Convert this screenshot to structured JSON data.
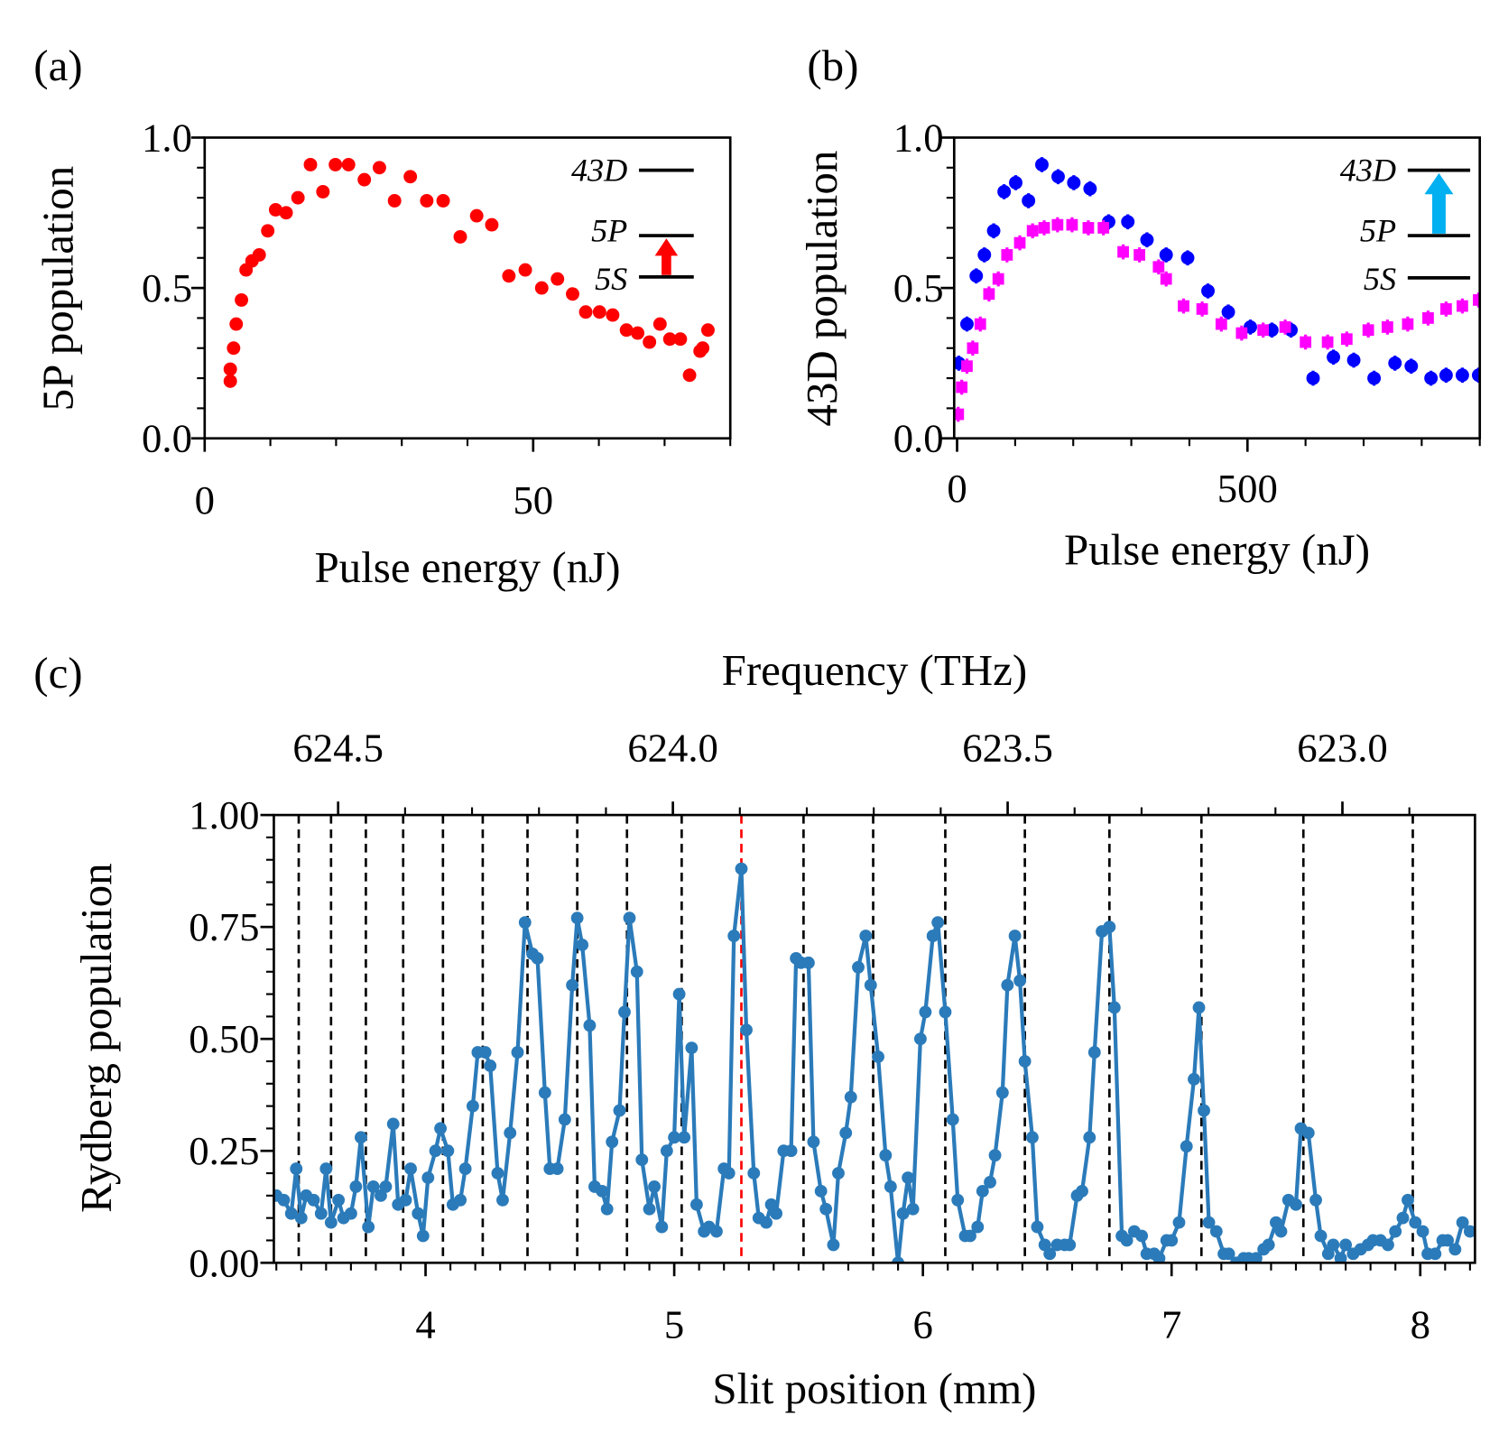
{
  "chart_data": [
    {
      "type": "scatter",
      "panel": "(a)",
      "xlabel": "Pulse energy (nJ)",
      "ylabel": "5P population",
      "xlim": [
        0,
        80
      ],
      "ylim": [
        0,
        1
      ],
      "xticks": [
        0,
        50
      ],
      "yticks": [
        {
          "value": 0,
          "label": "0.0"
        },
        0.5,
        {
          "value": 1,
          "label": "1.0"
        }
      ],
      "xminor": 10,
      "yminor": 0.1,
      "levels": [
        "43D",
        "5P",
        "5S"
      ],
      "arrow_from": 2,
      "arrow_to": 1,
      "arrow_color": "#ff0000",
      "series": [
        {
          "color": "#ff0000",
          "marker": "o",
          "x": [
            3.9,
            3.9,
            4.4,
            4.8,
            5.6,
            6.3,
            7.2,
            8.3,
            9.6,
            10.8,
            12.4,
            14.2,
            16.1,
            18.0,
            19.9,
            21.9,
            24.3,
            26.6,
            28.9,
            31.3,
            33.8,
            36.3,
            38.9,
            41.4,
            43.7,
            46.3,
            48.8,
            51.3,
            53.7,
            56.0,
            58.0,
            60.1,
            62.1,
            64.2,
            65.9,
            67.7,
            69.3,
            70.8,
            72.4,
            73.8,
            75.4,
            75.8,
            76.6
          ],
          "values": [
            0.19,
            0.23,
            0.3,
            0.38,
            0.46,
            0.56,
            0.59,
            0.61,
            0.69,
            0.76,
            0.75,
            0.8,
            0.91,
            0.82,
            0.91,
            0.91,
            0.86,
            0.9,
            0.79,
            0.87,
            0.79,
            0.79,
            0.67,
            0.74,
            0.71,
            0.54,
            0.56,
            0.5,
            0.53,
            0.48,
            0.42,
            0.42,
            0.41,
            0.36,
            0.35,
            0.32,
            0.38,
            0.33,
            0.33,
            0.21,
            0.29,
            0.3,
            0.36
          ]
        }
      ]
    },
    {
      "type": "scatter",
      "panel": "(b)",
      "xlabel": "Pulse energy (nJ)",
      "ylabel": "43D population",
      "xlim": [
        -5,
        900
      ],
      "ylim": [
        0,
        1
      ],
      "xticks": [
        0,
        500
      ],
      "yticks": [
        {
          "value": 0,
          "label": "0.0"
        },
        0.5,
        {
          "value": 1,
          "label": "1.0"
        }
      ],
      "xminor": 100,
      "yminor": 0.1,
      "levels": [
        "43D",
        "5P",
        "5S"
      ],
      "arrow_from": 1,
      "arrow_to": 0,
      "arrow_color": "#00b0f0",
      "series": [
        {
          "color": "#0000ff",
          "marker": "o",
          "error": 0.025,
          "x": [
            3,
            17,
            33,
            47,
            63,
            81,
            101,
            123,
            146,
            174,
            201,
            229,
            261,
            294,
            327,
            360,
            397,
            432,
            467,
            505,
            542,
            575,
            613,
            648,
            683,
            718,
            754,
            782,
            816,
            842,
            870,
            898
          ],
          "values": [
            0.25,
            0.38,
            0.54,
            0.61,
            0.69,
            0.82,
            0.85,
            0.79,
            0.91,
            0.87,
            0.85,
            0.83,
            0.72,
            0.72,
            0.66,
            0.61,
            0.6,
            0.49,
            0.42,
            0.37,
            0.36,
            0.36,
            0.2,
            0.27,
            0.26,
            0.2,
            0.25,
            0.24,
            0.2,
            0.21,
            0.21,
            0.21
          ]
        },
        {
          "color": "#ff00ff",
          "marker": "s",
          "error": 0.025,
          "x": [
            2,
            8,
            17,
            27,
            40,
            55,
            71,
            86,
            108,
            130,
            150,
            173,
            198,
            226,
            252,
            286,
            314,
            347,
            360,
            390,
            422,
            455,
            490,
            527,
            565,
            600,
            638,
            671,
            708,
            741,
            776,
            811,
            842,
            870,
            898
          ],
          "values": [
            0.08,
            0.17,
            0.24,
            0.3,
            0.38,
            0.48,
            0.53,
            0.61,
            0.65,
            0.69,
            0.7,
            0.71,
            0.71,
            0.7,
            0.7,
            0.62,
            0.61,
            0.57,
            0.53,
            0.44,
            0.43,
            0.38,
            0.35,
            0.36,
            0.37,
            0.32,
            0.32,
            0.33,
            0.36,
            0.37,
            0.38,
            0.4,
            0.43,
            0.44,
            0.46
          ]
        }
      ]
    },
    {
      "type": "line",
      "panel": "(c)",
      "xlabel": "Slit position (mm)",
      "ylabel": "Rydberg population",
      "x2label": "Frequency (THz)",
      "xlim": [
        3.39,
        8.22
      ],
      "ylim": [
        0,
        1
      ],
      "xticks": [
        4,
        5,
        6,
        7,
        8
      ],
      "xminor": 0.1,
      "yticks": [
        {
          "value": 0,
          "label": "0.00"
        },
        0.25,
        {
          "value": 0.5,
          "label": "0.50"
        },
        0.75,
        {
          "value": 1,
          "label": "1.00"
        }
      ],
      "yminor": 0.05,
      "x2lim": [
        624.596,
        622.802
      ],
      "x2ticks": [
        624.5,
        {
          "value": 624.0,
          "label": "624.0"
        },
        623.5,
        {
          "value": 623.0,
          "label": "623.0"
        }
      ],
      "x2minor": 0.1,
      "vlines": [
        3.49,
        3.62,
        3.76,
        3.91,
        4.07,
        4.23,
        4.41,
        4.61,
        4.81,
        5.03,
        5.27,
        5.52,
        5.8,
        6.09,
        6.41,
        6.75,
        7.12,
        7.53,
        7.97
      ],
      "vline_colors": [
        "#000000",
        "#000000",
        "#000000",
        "#000000",
        "#000000",
        "#000000",
        "#000000",
        "#000000",
        "#000000",
        "#000000",
        "#ff0000",
        "#000000",
        "#000000",
        "#000000",
        "#000000",
        "#000000",
        "#000000",
        "#000000",
        "#000000"
      ],
      "color": "#2b7bba",
      "x": [
        3.4,
        3.43,
        3.46,
        3.48,
        3.5,
        3.52,
        3.55,
        3.58,
        3.6,
        3.62,
        3.65,
        3.67,
        3.7,
        3.72,
        3.74,
        3.77,
        3.79,
        3.82,
        3.84,
        3.87,
        3.89,
        3.92,
        3.94,
        3.97,
        3.99,
        4.01,
        4.04,
        4.06,
        4.09,
        4.11,
        4.14,
        4.16,
        4.19,
        4.21,
        4.24,
        4.26,
        4.29,
        4.31,
        4.34,
        4.37,
        4.4,
        4.43,
        4.45,
        4.48,
        4.5,
        4.53,
        4.56,
        4.59,
        4.61,
        4.63,
        4.66,
        4.68,
        4.71,
        4.73,
        4.75,
        4.78,
        4.8,
        4.82,
        4.85,
        4.87,
        4.9,
        4.92,
        4.95,
        4.97,
        5.0,
        5.02,
        5.04,
        5.07,
        5.09,
        5.12,
        5.14,
        5.17,
        5.2,
        5.22,
        5.24,
        5.27,
        5.29,
        5.32,
        5.34,
        5.37,
        5.39,
        5.41,
        5.44,
        5.47,
        5.49,
        5.51,
        5.54,
        5.56,
        5.59,
        5.61,
        5.64,
        5.66,
        5.69,
        5.71,
        5.74,
        5.77,
        5.79,
        5.82,
        5.85,
        5.87,
        5.9,
        5.92,
        5.94,
        5.96,
        5.99,
        6.01,
        6.04,
        6.06,
        6.09,
        6.12,
        6.14,
        6.17,
        6.19,
        6.22,
        6.24,
        6.27,
        6.29,
        6.32,
        6.34,
        6.37,
        6.39,
        6.41,
        6.44,
        6.46,
        6.49,
        6.51,
        6.54,
        6.57,
        6.59,
        6.62,
        6.64,
        6.67,
        6.69,
        6.72,
        6.75,
        6.77,
        6.8,
        6.82,
        6.85,
        6.88,
        6.9,
        6.93,
        6.95,
        6.98,
        7.0,
        7.03,
        7.06,
        7.09,
        7.11,
        7.13,
        7.15,
        7.18,
        7.21,
        7.23,
        7.26,
        7.29,
        7.31,
        7.34,
        7.37,
        7.39,
        7.42,
        7.44,
        7.47,
        7.5,
        7.52,
        7.55,
        7.58,
        7.6,
        7.63,
        7.65,
        7.68,
        7.7,
        7.73,
        7.76,
        7.79,
        7.81,
        7.84,
        7.87,
        7.9,
        7.93,
        7.95,
        7.98,
        8.01,
        8.03,
        8.06,
        8.09,
        8.11,
        8.14,
        8.17,
        8.2
      ],
      "values": [
        0.15,
        0.14,
        0.11,
        0.21,
        0.1,
        0.15,
        0.14,
        0.11,
        0.21,
        0.09,
        0.14,
        0.1,
        0.11,
        0.17,
        0.28,
        0.08,
        0.17,
        0.15,
        0.17,
        0.31,
        0.13,
        0.14,
        0.21,
        0.11,
        0.06,
        0.19,
        0.25,
        0.3,
        0.25,
        0.13,
        0.14,
        0.21,
        0.35,
        0.47,
        0.47,
        0.44,
        0.2,
        0.14,
        0.29,
        0.47,
        0.76,
        0.69,
        0.68,
        0.38,
        0.21,
        0.21,
        0.32,
        0.62,
        0.77,
        0.71,
        0.53,
        0.17,
        0.16,
        0.12,
        0.27,
        0.34,
        0.56,
        0.77,
        0.65,
        0.23,
        0.12,
        0.17,
        0.08,
        0.25,
        0.28,
        0.6,
        0.28,
        0.48,
        0.13,
        0.07,
        0.08,
        0.07,
        0.21,
        0.2,
        0.73,
        0.88,
        0.52,
        0.2,
        0.1,
        0.09,
        0.13,
        0.11,
        0.25,
        0.25,
        0.68,
        0.67,
        0.67,
        0.27,
        0.16,
        0.12,
        0.04,
        0.2,
        0.29,
        0.37,
        0.66,
        0.73,
        0.62,
        0.46,
        0.24,
        0.17,
        0.0,
        0.11,
        0.19,
        0.12,
        0.5,
        0.56,
        0.73,
        0.76,
        0.56,
        0.32,
        0.14,
        0.06,
        0.06,
        0.08,
        0.16,
        0.18,
        0.24,
        0.38,
        0.62,
        0.73,
        0.63,
        0.45,
        0.28,
        0.08,
        0.04,
        0.02,
        0.04,
        0.04,
        0.04,
        0.15,
        0.16,
        0.28,
        0.47,
        0.74,
        0.75,
        0.57,
        0.06,
        0.05,
        0.07,
        0.06,
        0.02,
        0.02,
        0.01,
        0.05,
        0.05,
        0.09,
        0.26,
        0.41,
        0.57,
        0.34,
        0.09,
        0.07,
        0.02,
        0.02,
        0.0,
        0.01,
        0.01,
        0.01,
        0.03,
        0.04,
        0.09,
        0.07,
        0.14,
        0.13,
        0.3,
        0.29,
        0.14,
        0.06,
        0.02,
        0.04,
        0.01,
        0.04,
        0.02,
        0.03,
        0.04,
        0.05,
        0.05,
        0.04,
        0.07,
        0.1,
        0.14,
        0.09,
        0.07,
        0.02,
        0.02,
        0.05,
        0.05,
        0.03,
        0.09,
        0.07
      ]
    }
  ]
}
